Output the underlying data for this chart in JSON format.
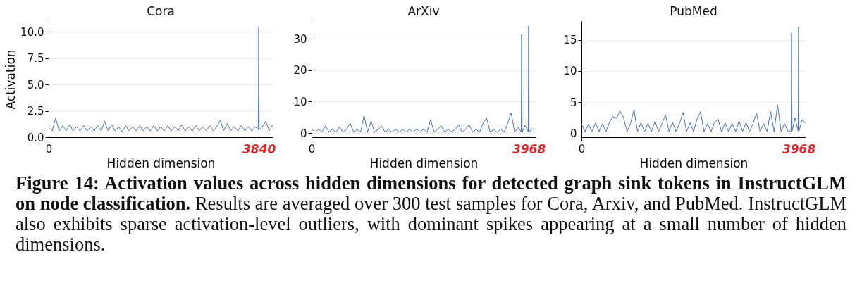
{
  "chart_data": [
    {
      "type": "line",
      "title": "Cora",
      "xlabel": "Hidden dimension",
      "ylabel": "Activation",
      "grid": "y",
      "xlim": [
        0,
        4096
      ],
      "ylim": [
        0,
        11
      ],
      "xticks": [
        0,
        3840
      ],
      "yticks": [
        {
          "value": 0,
          "label": "0.0"
        },
        2.5,
        {
          "value": 5,
          "label": "5.0"
        },
        7.5,
        {
          "value": 10,
          "label": "10.0"
        }
      ],
      "annotations": [
        "Figure 14: Activation values across hidden dimensions for detected graph sink tokens in InstructGLM on node classification.",
        "Results are averaged over 300 test samples for Cora, Arxiv, and PubMed. InstructGLM also exhibits sparse activation-level outliers, with dominant spikes appearing at a small number of hidden dimensions."
      ],
      "x": [
        0,
        64,
        128,
        192,
        256,
        320,
        384,
        448,
        512,
        576,
        640,
        704,
        768,
        832,
        896,
        960,
        1024,
        1088,
        1152,
        1216,
        1280,
        1344,
        1408,
        1472,
        1536,
        1600,
        1664,
        1728,
        1792,
        1856,
        1920,
        1984,
        2048,
        2112,
        2176,
        2240,
        2304,
        2368,
        2432,
        2496,
        2560,
        2624,
        2688,
        2752,
        2816,
        2880,
        2944,
        3008,
        3072,
        3136,
        3200,
        3264,
        3328,
        3392,
        3456,
        3520,
        3584,
        3648,
        3712,
        3776,
        3832,
        3840,
        3848,
        3904,
        3968,
        4032,
        4096
      ],
      "series": [
        {
          "color": "#4c72b0",
          "values": [
            0.9,
            0.6,
            1.8,
            0.6,
            1.1,
            0.6,
            1.2,
            0.6,
            1.0,
            0.6,
            1.1,
            0.6,
            1.0,
            0.6,
            1.1,
            0.6,
            1.5,
            0.6,
            1.2,
            0.6,
            1.0,
            0.5,
            1.1,
            0.6,
            1.0,
            0.6,
            1.1,
            0.6,
            1.0,
            0.6,
            1.1,
            0.6,
            1.0,
            0.6,
            1.1,
            0.6,
            1.0,
            0.6,
            1.2,
            0.6,
            1.0,
            0.6,
            1.1,
            0.6,
            1.0,
            0.6,
            1.1,
            0.6,
            1.0,
            1.6,
            0.6,
            1.3,
            0.6,
            1.0,
            0.6,
            1.1,
            0.6,
            1.0,
            0.6,
            1.0,
            0.7,
            10.5,
            0.7,
            1.0,
            1.5,
            0.6,
            1.2
          ]
        }
      ]
    },
    {
      "type": "line",
      "title": "ArXiv",
      "xlabel": "Hidden dimension",
      "grid": "y",
      "xlim": [
        0,
        4096
      ],
      "ylim": [
        -1.3,
        35.6
      ],
      "xticks": [
        0,
        3968
      ],
      "yticks": [
        0,
        10,
        20,
        30
      ],
      "x": [
        0,
        64,
        128,
        192,
        256,
        320,
        384,
        448,
        512,
        576,
        640,
        704,
        768,
        832,
        896,
        960,
        1024,
        1088,
        1152,
        1216,
        1280,
        1344,
        1408,
        1472,
        1536,
        1600,
        1664,
        1728,
        1792,
        1856,
        1920,
        1984,
        2048,
        2112,
        2176,
        2240,
        2304,
        2368,
        2432,
        2496,
        2560,
        2624,
        2688,
        2752,
        2816,
        2880,
        2944,
        3008,
        3072,
        3136,
        3200,
        3264,
        3328,
        3392,
        3456,
        3520,
        3584,
        3648,
        3712,
        3776,
        3832,
        3840,
        3848,
        3904,
        3960,
        3968,
        3976,
        4032,
        4096
      ],
      "series": [
        {
          "color": "#4c72b0",
          "values": [
            1.3,
            0.3,
            1.2,
            0.3,
            2.3,
            0.3,
            1.2,
            0.3,
            2.0,
            0.3,
            1.2,
            3.2,
            0.3,
            1.2,
            0.3,
            5.7,
            0.3,
            3.9,
            0.3,
            1.2,
            2.3,
            0.3,
            1.2,
            0.3,
            1.3,
            0.3,
            1.2,
            0.3,
            1.2,
            0.3,
            1.3,
            0.3,
            1.2,
            0.3,
            4.3,
            0.3,
            1.2,
            2.4,
            0.3,
            1.2,
            0.3,
            1.3,
            2.6,
            0.3,
            1.2,
            2.7,
            0.3,
            1.2,
            0.3,
            3.2,
            4.8,
            0.3,
            1.2,
            0.3,
            1.3,
            0.3,
            3.0,
            6.5,
            0.3,
            1.8,
            0.4,
            31.3,
            0.4,
            2.5,
            0.4,
            34.0,
            0.4,
            1.4,
            1.2
          ]
        }
      ]
    },
    {
      "type": "line",
      "title": "PubMed",
      "xlabel": "Hidden dimension",
      "grid": "y",
      "xlim": [
        0,
        4096
      ],
      "ylim": [
        -0.6,
        18
      ],
      "xticks": [
        0,
        3968
      ],
      "yticks": [
        0,
        5,
        10,
        15
      ],
      "x": [
        0,
        64,
        128,
        192,
        256,
        320,
        384,
        448,
        512,
        576,
        640,
        704,
        768,
        832,
        896,
        960,
        1024,
        1088,
        1152,
        1216,
        1280,
        1344,
        1408,
        1472,
        1536,
        1600,
        1664,
        1728,
        1792,
        1856,
        1920,
        1984,
        2048,
        2112,
        2176,
        2240,
        2304,
        2368,
        2432,
        2496,
        2560,
        2624,
        2688,
        2752,
        2816,
        2880,
        2944,
        3008,
        3072,
        3136,
        3200,
        3264,
        3328,
        3392,
        3456,
        3520,
        3584,
        3648,
        3712,
        3776,
        3832,
        3840,
        3848,
        3904,
        3960,
        3968,
        3976,
        4032,
        4096
      ],
      "series": [
        {
          "color": "#4c72b0",
          "values": [
            1.6,
            0.3,
            1.5,
            0.3,
            1.7,
            0.3,
            1.6,
            0.3,
            1.8,
            2.7,
            2.4,
            3.6,
            2.6,
            0.3,
            1.6,
            3.8,
            0.3,
            1.7,
            0.3,
            1.6,
            0.3,
            2.0,
            0.3,
            1.6,
            3.0,
            0.3,
            1.8,
            0.3,
            1.6,
            3.4,
            0.3,
            1.7,
            0.3,
            2.3,
            3.5,
            0.3,
            1.6,
            0.3,
            1.8,
            2.3,
            0.3,
            1.7,
            0.3,
            1.6,
            0.3,
            2.0,
            0.3,
            1.7,
            0.3,
            1.6,
            3.3,
            0.3,
            1.6,
            0.3,
            3.5,
            0.3,
            4.6,
            0.3,
            1.6,
            0.3,
            0.4,
            16.1,
            0.4,
            2.5,
            0.4,
            17.1,
            0.4,
            2.2,
            1.6
          ]
        }
      ]
    }
  ]
}
